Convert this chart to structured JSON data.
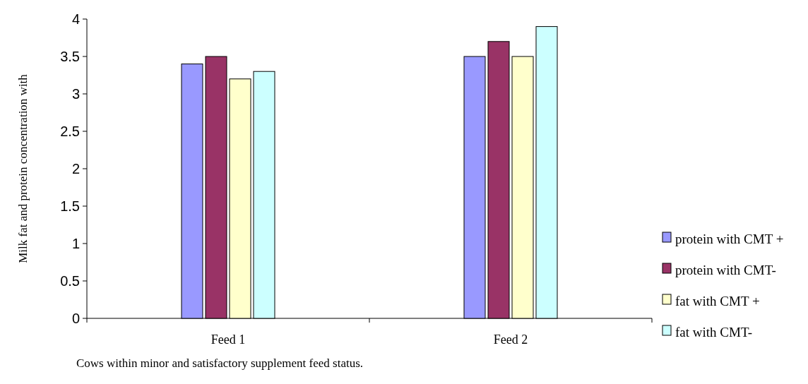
{
  "chart_data": {
    "type": "bar",
    "categories": [
      "Feed 1",
      "Feed 2"
    ],
    "series": [
      {
        "name": "protein with CMT +",
        "color": "#9999ff",
        "values": [
          3.4,
          3.5
        ]
      },
      {
        "name": "protein with CMT-",
        "color": "#993366",
        "values": [
          3.5,
          3.7
        ]
      },
      {
        "name": "fat with CMT +",
        "color": "#ffffcc",
        "values": [
          3.2,
          3.5
        ]
      },
      {
        "name": "fat with CMT-",
        "color": "#ccffff",
        "values": [
          3.3,
          3.9
        ]
      }
    ],
    "ylim": [
      0,
      4
    ],
    "yticks": [
      0,
      0.5,
      1,
      1.5,
      2,
      2.5,
      3,
      3.5,
      4
    ],
    "ylabel": "Milk fat and protein concentration with",
    "xlabel": "Cows within minor and satisfactory supplement feed status.",
    "legend": "bottom right",
    "grid": false
  }
}
